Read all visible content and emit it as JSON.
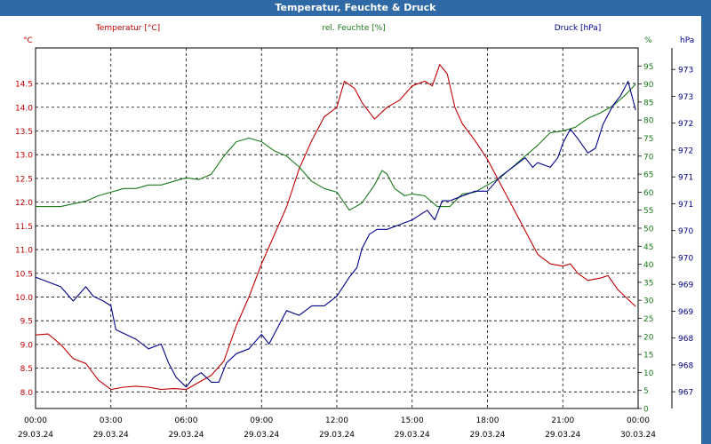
{
  "window": {
    "title": "Temperatur, Feuchte & Druck"
  },
  "colors": {
    "temperature": "#c00000",
    "humidity": "#1a7a1a",
    "pressure": "#00008b",
    "grid": "#000000",
    "titlebar": "#2f6aa6"
  },
  "chart_data": {
    "type": "line",
    "title": "Temperatur, Feuchte & Druck",
    "grid": true,
    "x_ticks": [
      {
        "time": "00:00",
        "date": "29.03.24"
      },
      {
        "time": "03:00",
        "date": "29.03.24"
      },
      {
        "time": "06:00",
        "date": "29.03.24"
      },
      {
        "time": "09:00",
        "date": "29.03.24"
      },
      {
        "time": "12:00",
        "date": "29.03.24"
      },
      {
        "time": "15:00",
        "date": "29.03.24"
      },
      {
        "time": "18:00",
        "date": "29.03.24"
      },
      {
        "time": "21:00",
        "date": "29.03.24"
      },
      {
        "time": "00:00",
        "date": "30.03.24"
      }
    ],
    "axes": {
      "temperature": {
        "label": "Temperatur [°C]",
        "unit": "°C",
        "ylim": [
          7.65,
          15.25
        ],
        "ticks": [
          "8.0",
          "8.5",
          "9.0",
          "9.5",
          "10.0",
          "10.5",
          "11.0",
          "11.5",
          "12.0",
          "12.5",
          "13.0",
          "13.5",
          "14.0",
          "14.5"
        ]
      },
      "humidity": {
        "label": "rel. Feuchte [%]",
        "unit": "%",
        "ylim": [
          0,
          100
        ],
        "ticks": [
          "0",
          "5",
          "10",
          "15",
          "20",
          "25",
          "30",
          "35",
          "40",
          "45",
          "50",
          "55",
          "60",
          "65",
          "70",
          "75",
          "80",
          "85",
          "90",
          "95"
        ]
      },
      "pressure": {
        "label": "Druck [hPa]",
        "unit": "hPa",
        "ylim": [
          966.65,
          974.2
        ],
        "ticks": [
          "967",
          "968",
          "968",
          "969",
          "969",
          "970",
          "970",
          "971",
          "971",
          "972",
          "972",
          "973",
          "973"
        ]
      }
    },
    "series": [
      {
        "name": "Temperatur [°C]",
        "axis": "temperature",
        "points": [
          [
            0,
            9.2
          ],
          [
            0.5,
            9.22
          ],
          [
            1,
            9.0
          ],
          [
            1.5,
            8.7
          ],
          [
            2,
            8.6
          ],
          [
            2.5,
            8.25
          ],
          [
            3,
            8.05
          ],
          [
            3.5,
            8.1
          ],
          [
            4,
            8.12
          ],
          [
            4.5,
            8.1
          ],
          [
            5,
            8.05
          ],
          [
            5.5,
            8.07
          ],
          [
            6,
            8.05
          ],
          [
            6.5,
            8.2
          ],
          [
            7,
            8.35
          ],
          [
            7.5,
            8.65
          ],
          [
            8,
            9.4
          ],
          [
            8.5,
            10.0
          ],
          [
            9,
            10.7
          ],
          [
            9.5,
            11.3
          ],
          [
            10,
            11.9
          ],
          [
            10.5,
            12.7
          ],
          [
            11,
            13.3
          ],
          [
            11.5,
            13.8
          ],
          [
            12,
            14.0
          ],
          [
            12.3,
            14.55
          ],
          [
            12.7,
            14.4
          ],
          [
            13,
            14.1
          ],
          [
            13.5,
            13.75
          ],
          [
            14,
            14.0
          ],
          [
            14.5,
            14.15
          ],
          [
            15,
            14.45
          ],
          [
            15.5,
            14.55
          ],
          [
            15.8,
            14.45
          ],
          [
            16.1,
            14.9
          ],
          [
            16.4,
            14.7
          ],
          [
            16.7,
            14.0
          ],
          [
            17,
            13.65
          ],
          [
            17.5,
            13.3
          ],
          [
            18,
            12.9
          ],
          [
            18.5,
            12.4
          ],
          [
            19,
            11.9
          ],
          [
            19.5,
            11.4
          ],
          [
            20,
            10.9
          ],
          [
            20.5,
            10.7
          ],
          [
            21,
            10.65
          ],
          [
            21.3,
            10.7
          ],
          [
            21.6,
            10.5
          ],
          [
            22,
            10.35
          ],
          [
            22.5,
            10.4
          ],
          [
            22.8,
            10.45
          ],
          [
            23.2,
            10.15
          ],
          [
            23.6,
            9.95
          ],
          [
            23.9,
            9.8
          ]
        ]
      },
      {
        "name": "rel. Feuchte [%]",
        "axis": "humidity",
        "points": [
          [
            0,
            56
          ],
          [
            1,
            56
          ],
          [
            2,
            57.5
          ],
          [
            2.5,
            59
          ],
          [
            3,
            60
          ],
          [
            3.5,
            61
          ],
          [
            4,
            61
          ],
          [
            4.5,
            62
          ],
          [
            5,
            62
          ],
          [
            5.5,
            63
          ],
          [
            6,
            64
          ],
          [
            6.5,
            63.5
          ],
          [
            7,
            65
          ],
          [
            7.5,
            70
          ],
          [
            8,
            74
          ],
          [
            8.5,
            75
          ],
          [
            9,
            74
          ],
          [
            9.5,
            71.5
          ],
          [
            10,
            70
          ],
          [
            10.5,
            67
          ],
          [
            11,
            63
          ],
          [
            11.5,
            61
          ],
          [
            12,
            60
          ],
          [
            12.5,
            55
          ],
          [
            13,
            57
          ],
          [
            13.5,
            62
          ],
          [
            13.8,
            66
          ],
          [
            14,
            65
          ],
          [
            14.3,
            61
          ],
          [
            14.7,
            59
          ],
          [
            15,
            59.5
          ],
          [
            15.5,
            59
          ],
          [
            16,
            56
          ],
          [
            16.5,
            56
          ],
          [
            17,
            59.5
          ],
          [
            17.5,
            60
          ],
          [
            18,
            62
          ],
          [
            18.5,
            64
          ],
          [
            19,
            67
          ],
          [
            19.5,
            70
          ],
          [
            20,
            73
          ],
          [
            20.5,
            76.5
          ],
          [
            21,
            77
          ],
          [
            21.5,
            78
          ],
          [
            22,
            80.5
          ],
          [
            22.5,
            82
          ],
          [
            23,
            84
          ],
          [
            23.5,
            87
          ],
          [
            23.9,
            90
          ]
        ]
      },
      {
        "name": "Druck [hPa]",
        "axis": "pressure",
        "points": [
          [
            0,
            969.4
          ],
          [
            0.5,
            969.3
          ],
          [
            1,
            969.2
          ],
          [
            1.5,
            968.9
          ],
          [
            2,
            969.2
          ],
          [
            2.3,
            969.0
          ],
          [
            2.7,
            968.9
          ],
          [
            3,
            968.8
          ],
          [
            3.2,
            968.3
          ],
          [
            3.6,
            968.2
          ],
          [
            4,
            968.1
          ],
          [
            4.5,
            967.9
          ],
          [
            5,
            968.0
          ],
          [
            5.3,
            967.6
          ],
          [
            5.6,
            967.3
          ],
          [
            6,
            967.1
          ],
          [
            6.3,
            967.3
          ],
          [
            6.6,
            967.4
          ],
          [
            7,
            967.2
          ],
          [
            7.3,
            967.2
          ],
          [
            7.6,
            967.6
          ],
          [
            8,
            967.8
          ],
          [
            8.5,
            967.9
          ],
          [
            9,
            968.2
          ],
          [
            9.3,
            968.0
          ],
          [
            9.6,
            968.3
          ],
          [
            10,
            968.7
          ],
          [
            10.5,
            968.6
          ],
          [
            11,
            968.8
          ],
          [
            11.5,
            968.8
          ],
          [
            12,
            969.0
          ],
          [
            12.5,
            969.4
          ],
          [
            12.8,
            969.6
          ],
          [
            13,
            970.0
          ],
          [
            13.3,
            970.3
          ],
          [
            13.6,
            970.4
          ],
          [
            14,
            970.4
          ],
          [
            14.5,
            970.5
          ],
          [
            15,
            970.6
          ],
          [
            15.3,
            970.7
          ],
          [
            15.6,
            970.8
          ],
          [
            15.9,
            970.6
          ],
          [
            16.2,
            971.0
          ],
          [
            16.5,
            971.0
          ],
          [
            17,
            971.1
          ],
          [
            17.5,
            971.2
          ],
          [
            18,
            971.2
          ],
          [
            18.5,
            971.5
          ],
          [
            19,
            971.7
          ],
          [
            19.5,
            971.9
          ],
          [
            19.8,
            971.7
          ],
          [
            20,
            971.8
          ],
          [
            20.5,
            971.7
          ],
          [
            20.8,
            971.9
          ],
          [
            21,
            972.2
          ],
          [
            21.3,
            972.5
          ],
          [
            21.6,
            972.3
          ],
          [
            22,
            972.0
          ],
          [
            22.3,
            972.1
          ],
          [
            22.6,
            972.6
          ],
          [
            23,
            973.0
          ],
          [
            23.3,
            973.2
          ],
          [
            23.6,
            973.5
          ],
          [
            23.9,
            972.9
          ]
        ]
      }
    ]
  }
}
